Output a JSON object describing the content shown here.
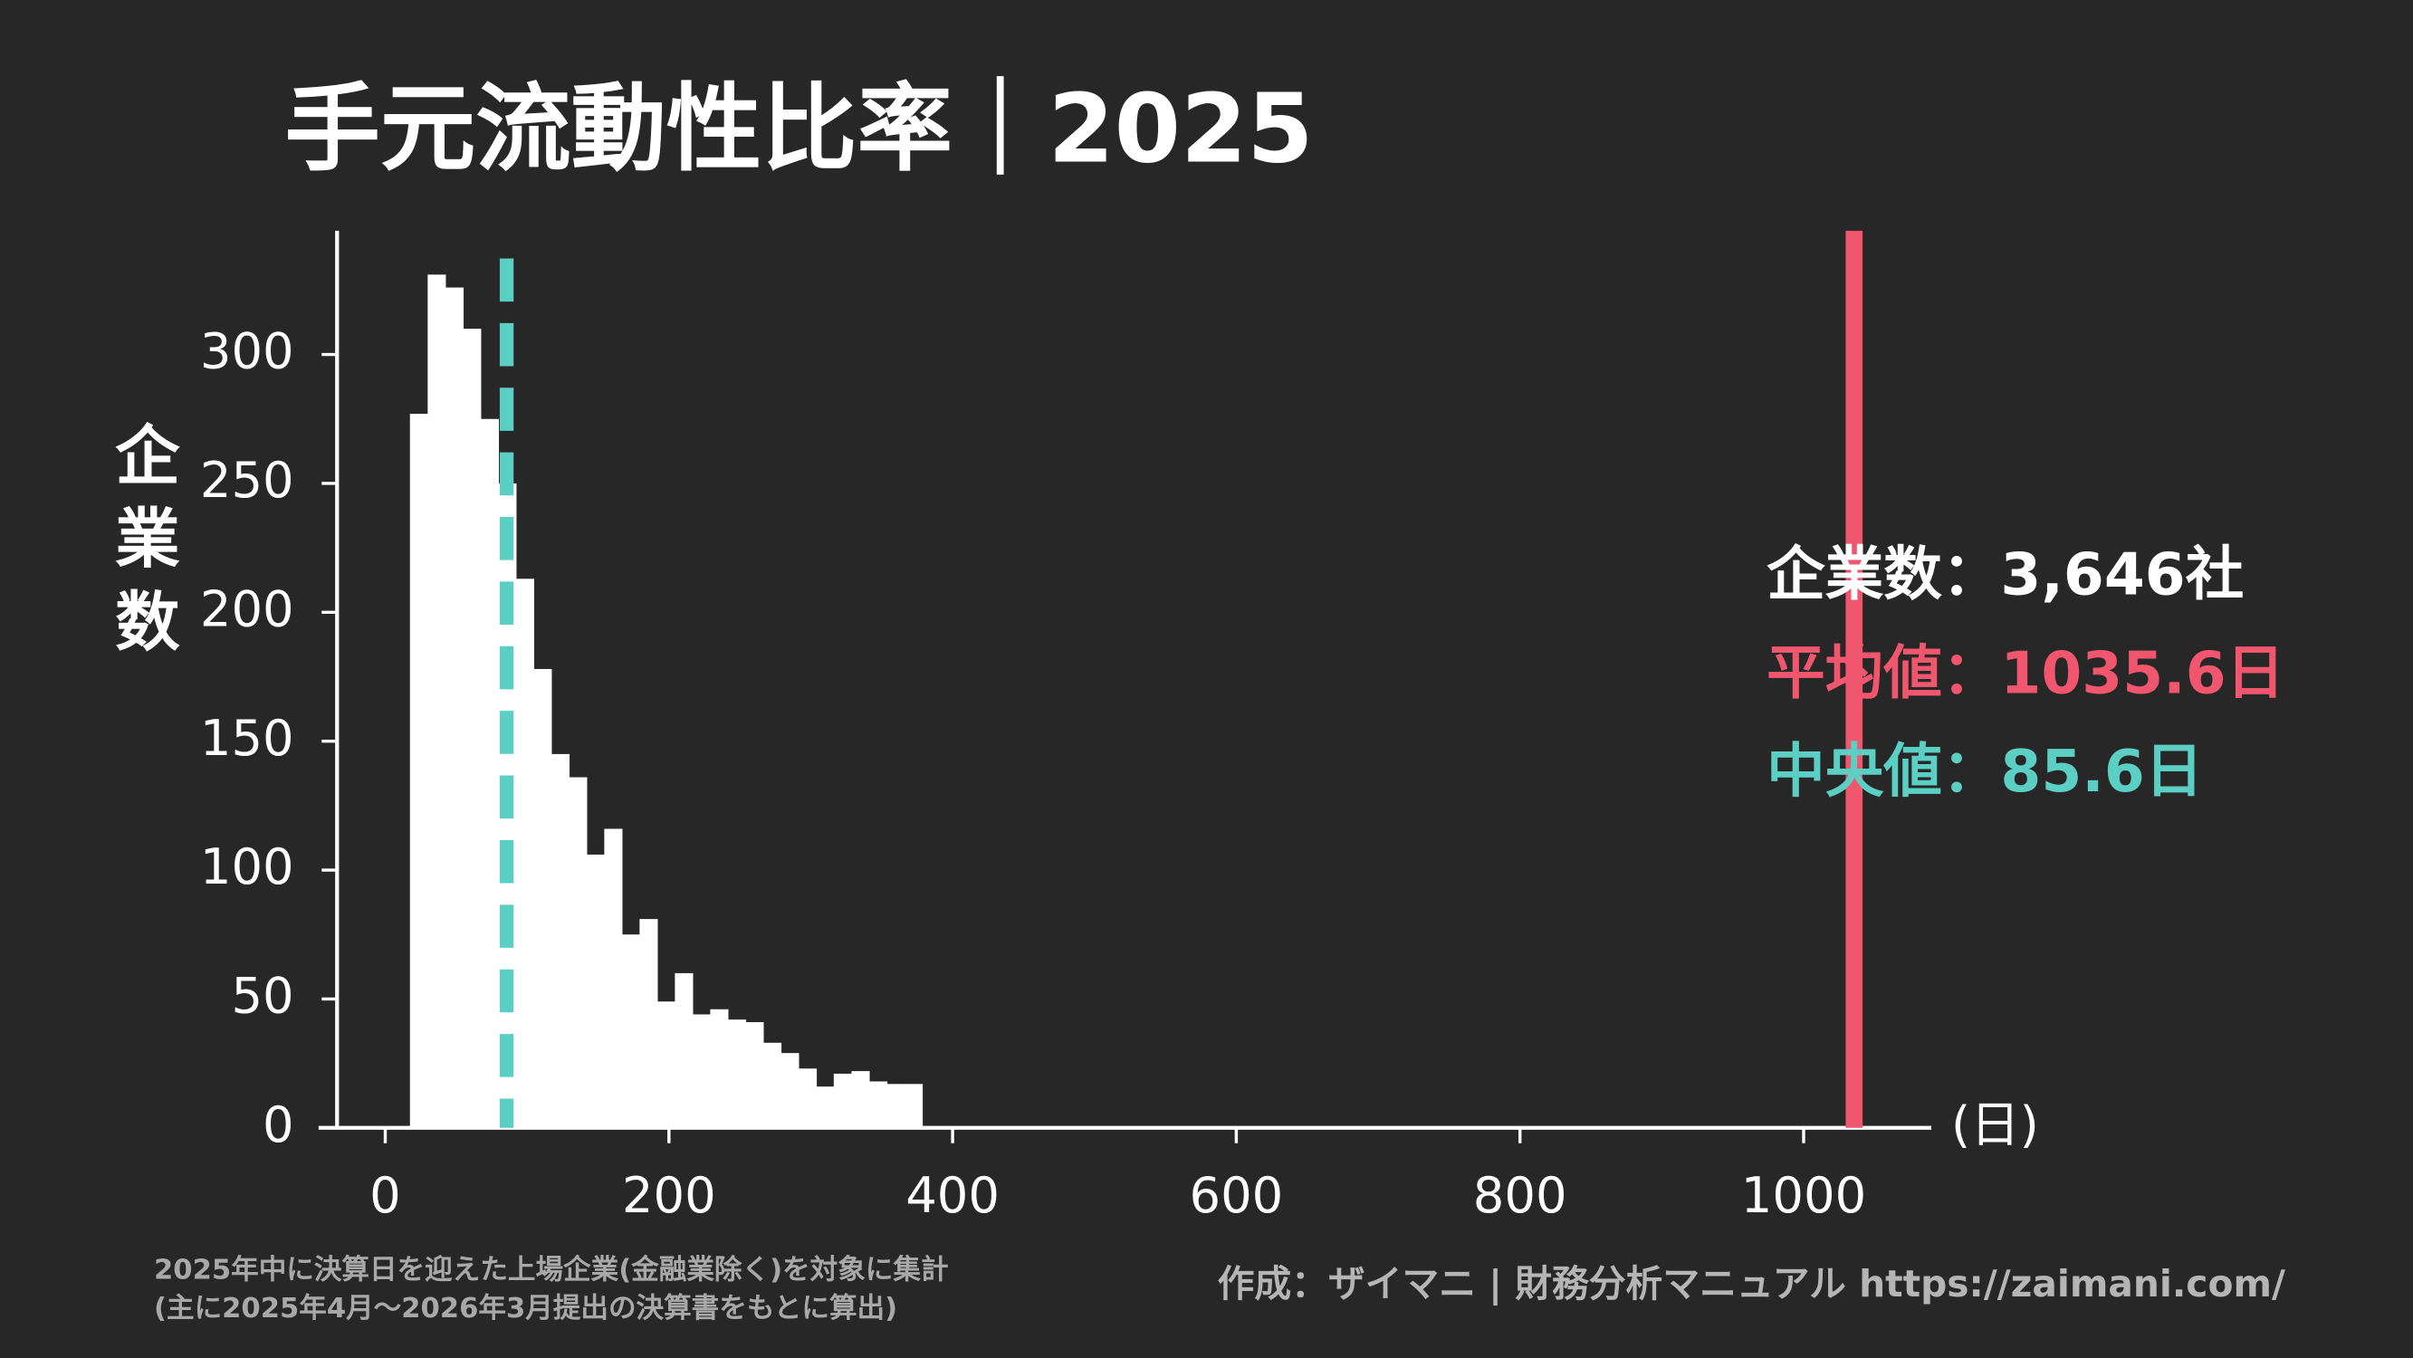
{
  "chart_data": {
    "type": "histogram",
    "title": "手元流動性比率｜2025",
    "ylabel": "企業数",
    "xlabel": "(日)",
    "bins": [
      17.4,
      29.9,
      42.3,
      54.8,
      67.2,
      79.7,
      92.1,
      104.6,
      117.0,
      129.5,
      141.9,
      154.4,
      166.8,
      179.3,
      191.7,
      204.2,
      216.6,
      229.1,
      241.5,
      254.0,
      266.4,
      278.9,
      291.3,
      303.8,
      316.2,
      328.7,
      341.1,
      353.6,
      366.0,
      378.5
    ],
    "values": [
      277,
      331,
      326,
      310,
      275,
      250,
      213,
      178,
      145,
      136,
      106,
      116,
      75,
      81,
      49,
      60,
      44,
      46,
      42,
      41,
      33,
      29,
      23,
      16,
      21,
      22,
      18,
      17,
      17
    ],
    "color": "#ffffff",
    "xlim": [
      -47,
      1090
    ],
    "ylim": [
      0,
      348
    ],
    "xticks": [
      0,
      200,
      400,
      600,
      800,
      1000
    ],
    "yticks": [
      0,
      50,
      100,
      150,
      200,
      250,
      300
    ],
    "annotations": [
      {
        "text": "企業数：3,646社",
        "color": "#ffffff"
      },
      {
        "text": "平均値：1035.6日",
        "value": 1035.6,
        "color": "#f0566e",
        "line_style": "solid"
      },
      {
        "text": "中央値：85.6日",
        "value": 85.6,
        "color": "#5ccfc5",
        "line_style": "dashed"
      }
    ],
    "notes": [
      "2025年中に決算日を迎えた上場企業(金融業除く)を対象に集計",
      "(主に2025年4月〜2026年3月提出の決算書をもとに算出)"
    ],
    "credit": "作成：ザイマニ | 財務分析マニュアル https://zaimani.com/"
  }
}
